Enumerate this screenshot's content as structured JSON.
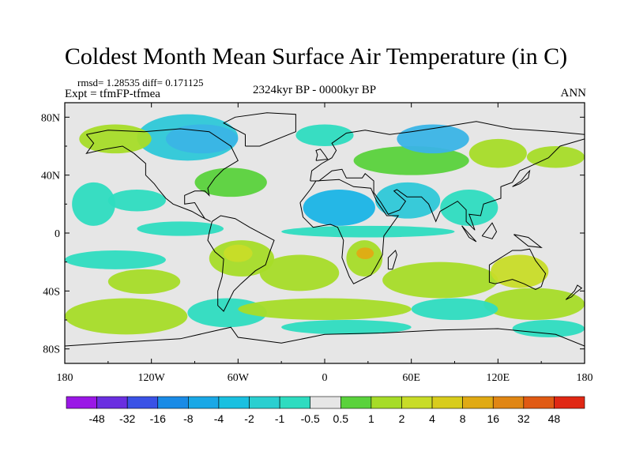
{
  "title": "Coldest Month Mean Surface Air Temperature (in C)",
  "stats": "rmsd= 1.28535 diff= 0.171125",
  "experiment": "Expt = tfmFP-tfmea",
  "period": "2324kyr BP - 0000kyr BP",
  "season": "ANN",
  "map": {
    "lon_range": [
      -180,
      180
    ],
    "lat_range": [
      -90,
      90
    ],
    "lat_ticks": [
      {
        "value": 80,
        "label": "80N"
      },
      {
        "value": 40,
        "label": "40N"
      },
      {
        "value": 0,
        "label": "0"
      },
      {
        "value": -40,
        "label": "40S"
      },
      {
        "value": -80,
        "label": "80S"
      }
    ],
    "lon_ticks": [
      {
        "value": -180,
        "label": "180"
      },
      {
        "value": -120,
        "label": "120W"
      },
      {
        "value": -60,
        "label": "60W"
      },
      {
        "value": 0,
        "label": "0"
      },
      {
        "value": 60,
        "label": "60E"
      },
      {
        "value": 120,
        "label": "120E"
      },
      {
        "value": 180,
        "label": "180"
      }
    ],
    "background_color": "#e6e6e6",
    "coastline_color": "#000000"
  },
  "colorbar": {
    "colors": [
      "#9a17e6",
      "#6a2fe0",
      "#3a52e6",
      "#1a8be6",
      "#1aa8e6",
      "#1ac0e0",
      "#2acfd0",
      "#2edcc0",
      "#e6e6e6",
      "#5ad23c",
      "#a6dc28",
      "#c8dc28",
      "#d8cc1c",
      "#e0aa14",
      "#e08614",
      "#e05a14",
      "#e02814"
    ],
    "labels": [
      "-48",
      "-32",
      "-16",
      "-8",
      "-4",
      "-2",
      "-1",
      "-0.5",
      "0.5",
      "1",
      "2",
      "4",
      "8",
      "16",
      "32",
      "48"
    ]
  },
  "regions": [
    {
      "color": "#2ec8d8",
      "lon": [
        -130,
        -60
      ],
      "lat": [
        50,
        82
      ]
    },
    {
      "color": "#3ab4e6",
      "lon": [
        -110,
        -60
      ],
      "lat": [
        55,
        75
      ]
    },
    {
      "color": "#a6dc28",
      "lon": [
        -170,
        -120
      ],
      "lat": [
        55,
        75
      ]
    },
    {
      "color": "#2edcc0",
      "lon": [
        -175,
        -145
      ],
      "lat": [
        5,
        35
      ]
    },
    {
      "color": "#2edcc0",
      "lon": [
        -150,
        -110
      ],
      "lat": [
        15,
        30
      ]
    },
    {
      "color": "#2edcc0",
      "lon": [
        -130,
        -70
      ],
      "lat": [
        -2,
        8
      ]
    },
    {
      "color": "#5ad23c",
      "lon": [
        -90,
        -40
      ],
      "lat": [
        25,
        45
      ]
    },
    {
      "color": "#2edcc0",
      "lon": [
        -180,
        -110
      ],
      "lat": [
        -25,
        -12
      ]
    },
    {
      "color": "#a6dc28",
      "lon": [
        -150,
        -100
      ],
      "lat": [
        -42,
        -25
      ]
    },
    {
      "color": "#a6dc28",
      "lon": [
        -80,
        -35
      ],
      "lat": [
        -30,
        -5
      ]
    },
    {
      "color": "#c8dc28",
      "lon": [
        -70,
        -50
      ],
      "lat": [
        -20,
        -8
      ]
    },
    {
      "color": "#a6dc28",
      "lon": [
        -45,
        10
      ],
      "lat": [
        -40,
        -15
      ]
    },
    {
      "color": "#a6dc28",
      "lon": [
        -180,
        -95
      ],
      "lat": [
        -70,
        -45
      ]
    },
    {
      "color": "#2edcc0",
      "lon": [
        -95,
        -40
      ],
      "lat": [
        -65,
        -45
      ]
    },
    {
      "color": "#5ad23c",
      "lon": [
        20,
        100
      ],
      "lat": [
        40,
        60
      ]
    },
    {
      "color": "#3ab4e6",
      "lon": [
        50,
        100
      ],
      "lat": [
        55,
        75
      ]
    },
    {
      "color": "#2edcc0",
      "lon": [
        -20,
        20
      ],
      "lat": [
        60,
        75
      ]
    },
    {
      "color": "#a6dc28",
      "lon": [
        100,
        140
      ],
      "lat": [
        45,
        65
      ]
    },
    {
      "color": "#a6dc28",
      "lon": [
        140,
        180
      ],
      "lat": [
        45,
        60
      ]
    },
    {
      "color": "#1ab4e6",
      "lon": [
        -15,
        35
      ],
      "lat": [
        5,
        30
      ]
    },
    {
      "color": "#2ec8d8",
      "lon": [
        35,
        80
      ],
      "lat": [
        10,
        35
      ]
    },
    {
      "color": "#2edcc0",
      "lon": [
        80,
        120
      ],
      "lat": [
        5,
        30
      ]
    },
    {
      "color": "#2edcc0",
      "lon": [
        -30,
        90
      ],
      "lat": [
        -3,
        5
      ]
    },
    {
      "color": "#a6dc28",
      "lon": [
        15,
        40
      ],
      "lat": [
        -30,
        -5
      ]
    },
    {
      "color": "#e0aa14",
      "lon": [
        22,
        34
      ],
      "lat": [
        -18,
        -10
      ]
    },
    {
      "color": "#a6dc28",
      "lon": [
        40,
        120
      ],
      "lat": [
        -45,
        -20
      ]
    },
    {
      "color": "#c8dc28",
      "lon": [
        115,
        155
      ],
      "lat": [
        -38,
        -15
      ]
    },
    {
      "color": "#a6dc28",
      "lon": [
        110,
        180
      ],
      "lat": [
        -60,
        -38
      ]
    },
    {
      "color": "#2edcc0",
      "lon": [
        60,
        120
      ],
      "lat": [
        -60,
        -45
      ]
    },
    {
      "color": "#a6dc28",
      "lon": [
        -60,
        60
      ],
      "lat": [
        -60,
        -45
      ]
    },
    {
      "color": "#2edcc0",
      "lon": [
        -30,
        60
      ],
      "lat": [
        -70,
        -60
      ]
    },
    {
      "color": "#2edcc0",
      "lon": [
        130,
        180
      ],
      "lat": [
        -72,
        -60
      ]
    }
  ]
}
